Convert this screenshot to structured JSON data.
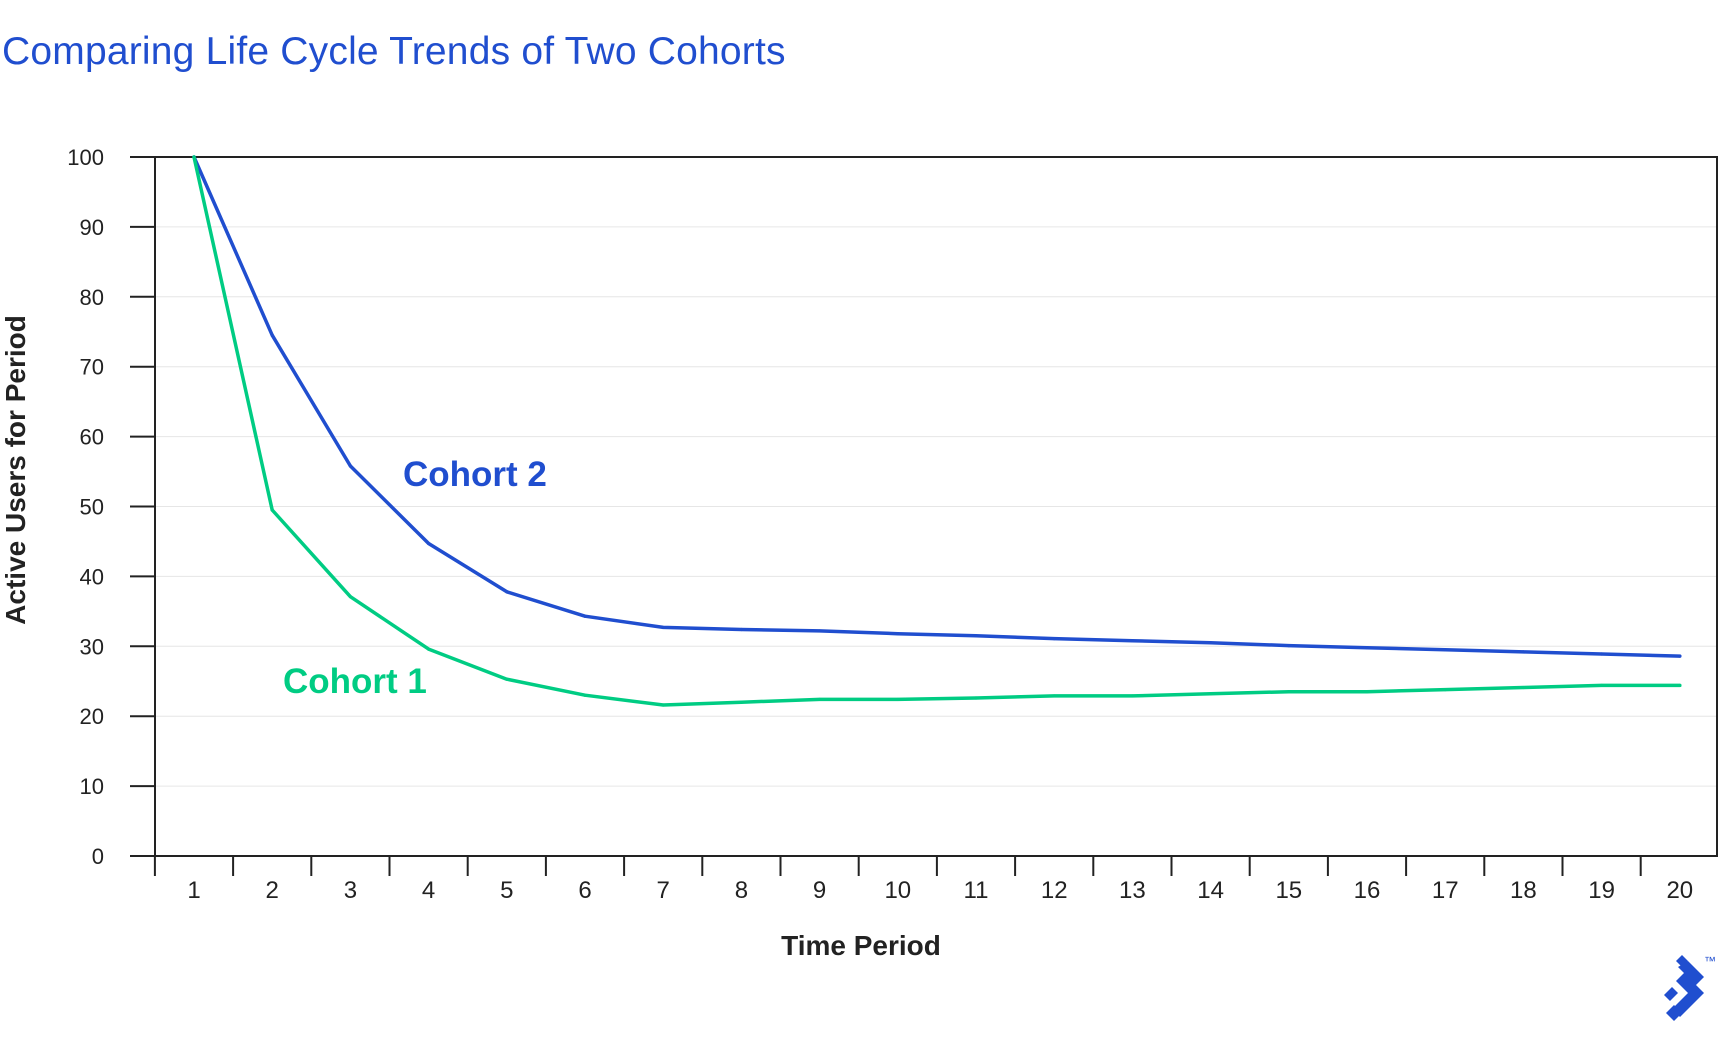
{
  "title": "Comparing Life Cycle Trends of Two Cohorts",
  "colors": {
    "title": "#204ecf",
    "cohort_2": "#204ecf",
    "cohort_1": "#00cc83",
    "axis": "#222222",
    "grid": "#e6e6e6",
    "logo": "#204ecf"
  },
  "logo": {
    "icon": "toptal-logo-icon",
    "mark": "™"
  },
  "chart_data": {
    "type": "line",
    "title": "Comparing Life Cycle Trends of Two Cohorts",
    "xlabel": "Time Period",
    "ylabel": "Active Users for Period",
    "x": [
      1,
      2,
      3,
      4,
      5,
      6,
      7,
      8,
      9,
      10,
      11,
      12,
      13,
      14,
      15,
      16,
      17,
      18,
      19,
      20
    ],
    "x_tick_labels": [
      "1",
      "2",
      "3",
      "4",
      "5",
      "6",
      "7",
      "8",
      "9",
      "10",
      "11",
      "12",
      "13",
      "14",
      "15",
      "16",
      "17",
      "18",
      "19",
      "20"
    ],
    "y_ticks": [
      0,
      10,
      20,
      30,
      40,
      50,
      60,
      70,
      80,
      90,
      100
    ],
    "ylim": [
      0,
      100
    ],
    "grid": true,
    "series": [
      {
        "name": "Cohort 2",
        "color": "#204ecf",
        "values": [
          100,
          74.5,
          55.8,
          44.7,
          37.8,
          34.3,
          32.7,
          32.4,
          32.2,
          31.8,
          31.5,
          31.1,
          30.8,
          30.5,
          30.1,
          29.8,
          29.5,
          29.2,
          28.9,
          28.6
        ]
      },
      {
        "name": "Cohort 1",
        "color": "#00cc83",
        "values": [
          100,
          49.5,
          37.1,
          29.6,
          25.3,
          23.0,
          21.6,
          22.0,
          22.4,
          22.4,
          22.6,
          22.9,
          22.9,
          23.2,
          23.5,
          23.5,
          23.8,
          24.1,
          24.4,
          24.4
        ]
      }
    ]
  }
}
